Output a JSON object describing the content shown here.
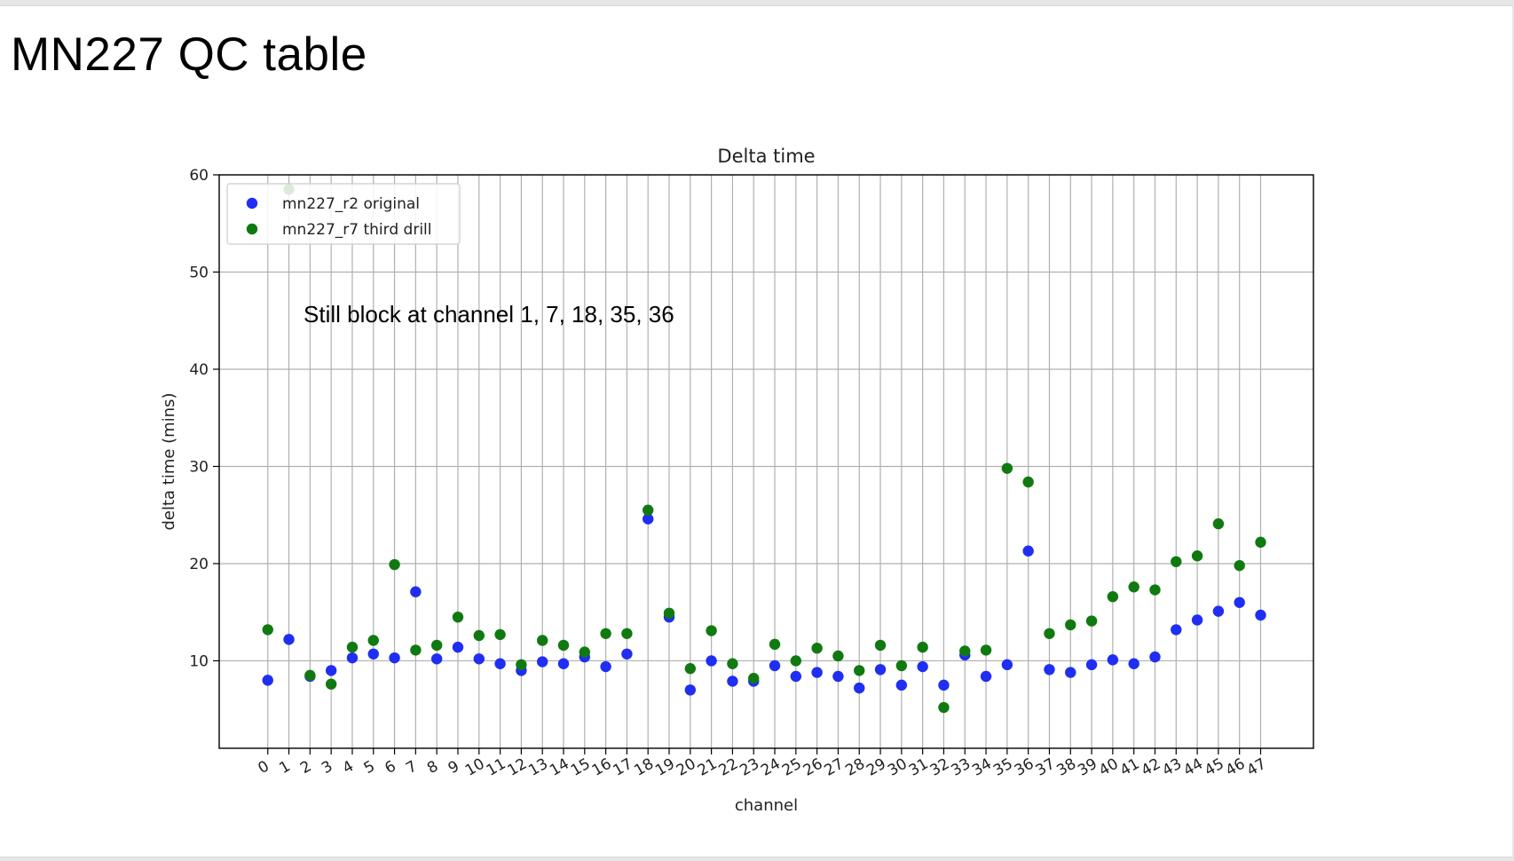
{
  "slide": {
    "title": "MN227 QC table"
  },
  "chart_data": {
    "type": "scatter",
    "title": "Delta time",
    "xlabel": "channel",
    "ylabel": "delta time (mins)",
    "ylim": [
      1,
      60
    ],
    "yticks": [
      10,
      20,
      30,
      40,
      50,
      60
    ],
    "x": [
      0,
      1,
      2,
      3,
      4,
      5,
      6,
      7,
      8,
      9,
      10,
      11,
      12,
      13,
      14,
      15,
      16,
      17,
      18,
      19,
      20,
      21,
      22,
      23,
      24,
      25,
      26,
      27,
      28,
      29,
      30,
      31,
      32,
      33,
      34,
      35,
      36,
      37,
      38,
      39,
      40,
      41,
      42,
      43,
      44,
      45,
      46,
      47
    ],
    "grid": true,
    "legend_position": "top-left",
    "annotation": "Still block at channel 1, 7, 18, 35, 36",
    "series": [
      {
        "name": "mn227_r2 original",
        "color": "#1f2ef2",
        "values": [
          8.0,
          12.2,
          8.4,
          9.0,
          10.3,
          10.7,
          10.3,
          17.1,
          10.2,
          11.4,
          10.2,
          9.7,
          9.0,
          9.9,
          9.7,
          10.4,
          9.4,
          10.7,
          24.6,
          14.5,
          7.0,
          10.0,
          7.9,
          7.9,
          9.5,
          8.4,
          8.8,
          8.4,
          7.2,
          9.1,
          7.5,
          9.4,
          7.5,
          10.6,
          8.4,
          9.6,
          21.3,
          9.1,
          8.8,
          9.6,
          10.1,
          9.7,
          10.4,
          13.2,
          14.2,
          15.1,
          16.0,
          14.7
        ]
      },
      {
        "name": "mn227_r7 third drill",
        "color": "#107a10",
        "values": [
          13.2,
          58.5,
          8.5,
          7.6,
          11.4,
          12.1,
          19.9,
          11.1,
          11.6,
          14.5,
          12.6,
          12.7,
          9.6,
          12.1,
          11.6,
          10.9,
          12.8,
          12.8,
          25.5,
          14.9,
          9.2,
          13.1,
          9.7,
          8.2,
          11.7,
          10.0,
          11.3,
          10.5,
          9.0,
          11.6,
          9.5,
          11.4,
          5.2,
          11.0,
          11.1,
          29.8,
          28.4,
          12.8,
          13.7,
          14.1,
          16.6,
          17.6,
          17.3,
          20.2,
          20.8,
          24.1,
          19.8,
          22.2
        ]
      }
    ]
  }
}
